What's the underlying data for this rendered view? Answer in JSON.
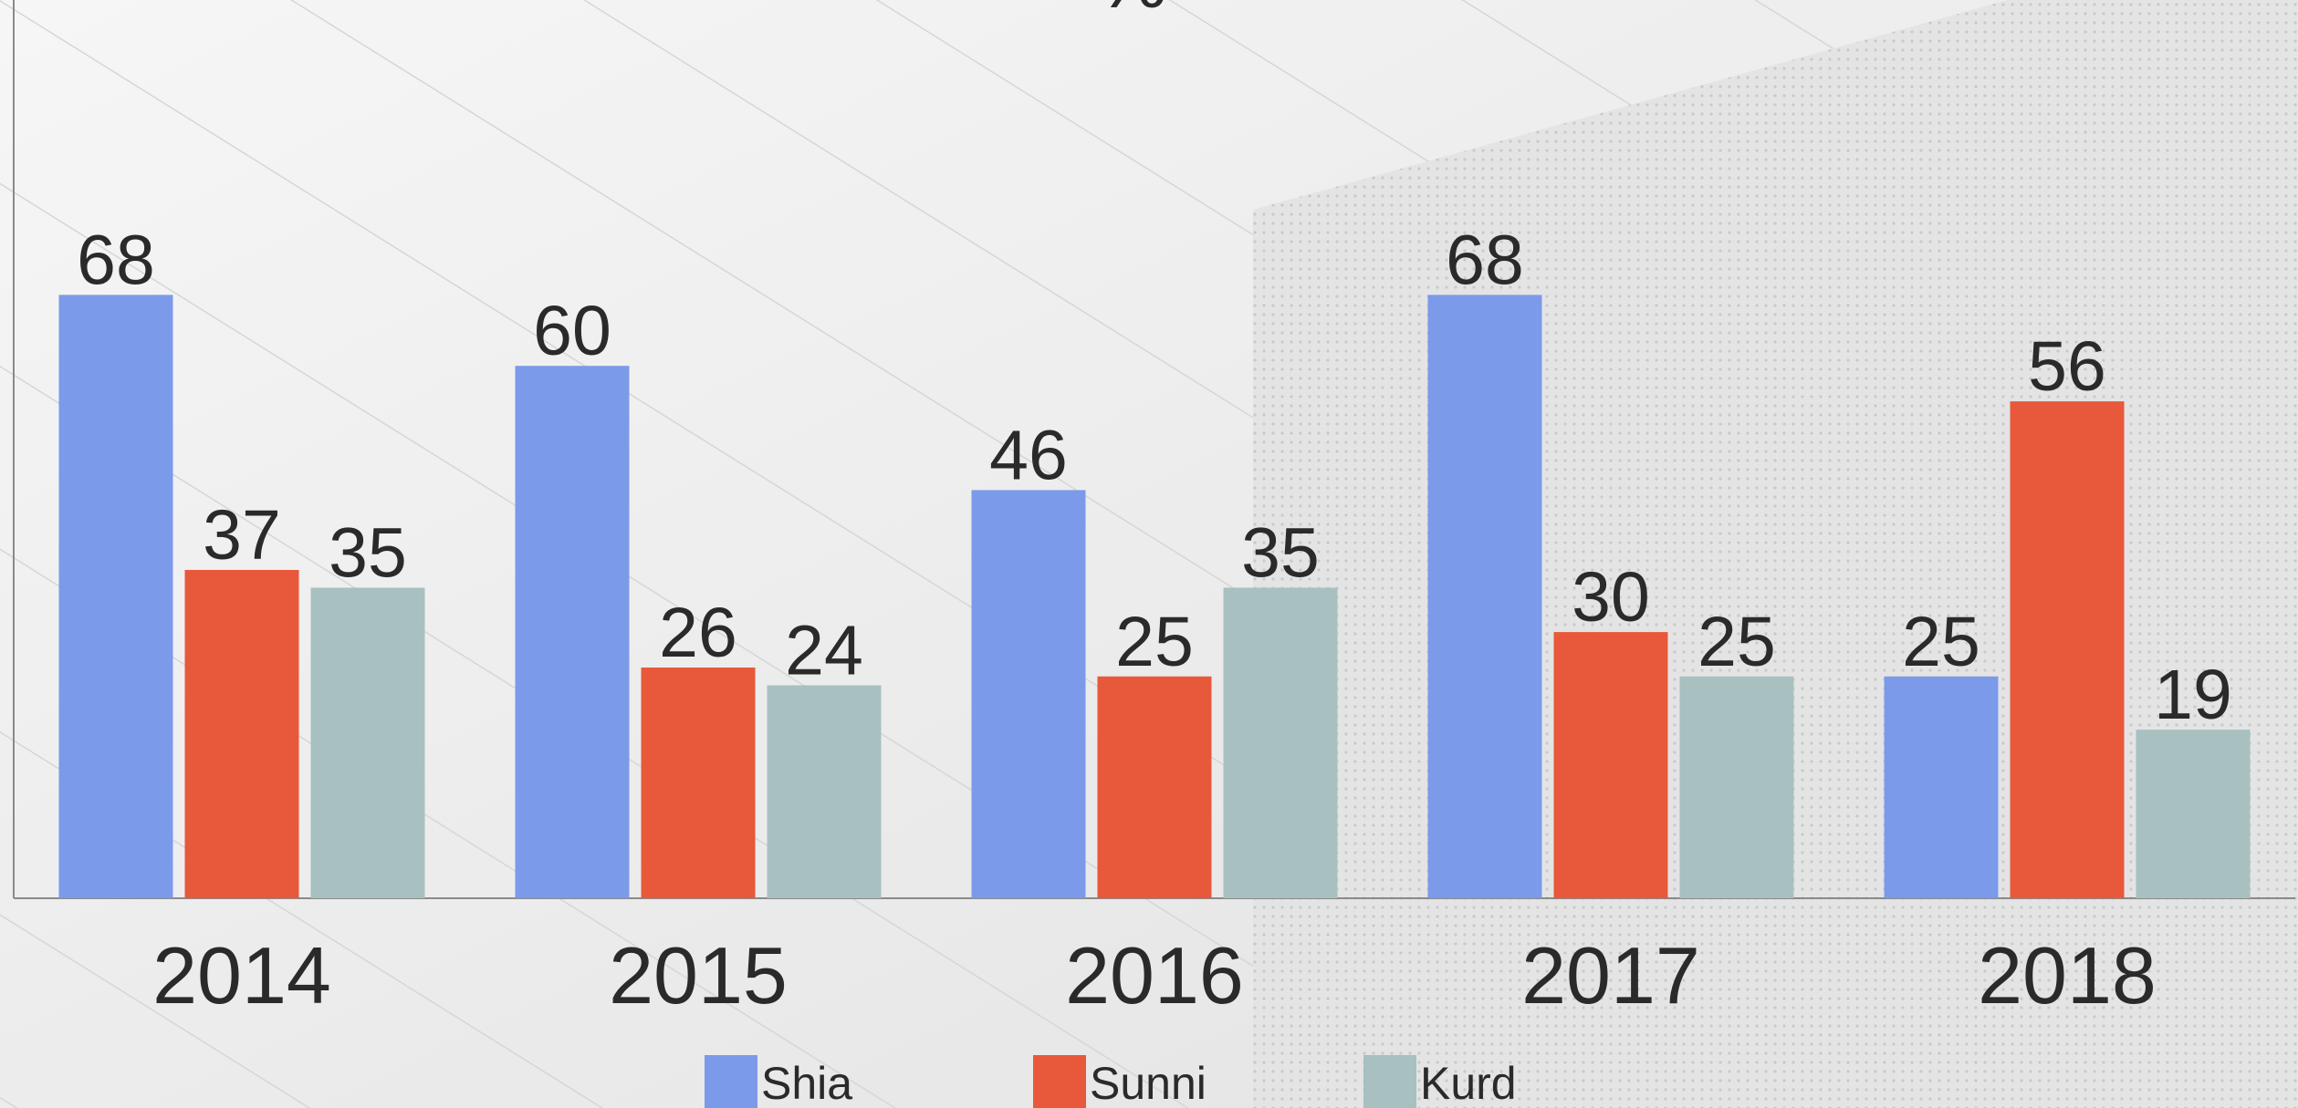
{
  "chart_data": {
    "type": "bar",
    "title": "%",
    "categories": [
      "2014",
      "2015",
      "2016",
      "2017",
      "2018"
    ],
    "series": [
      {
        "name": "Shia",
        "color": "#7b9aea",
        "values": [
          68,
          60,
          46,
          68,
          25
        ]
      },
      {
        "name": "Sunni",
        "color": "#e8583a",
        "values": [
          37,
          26,
          25,
          30,
          56
        ]
      },
      {
        "name": "Kurd",
        "color": "#a8c0c0",
        "values": [
          35,
          24,
          35,
          25,
          19
        ]
      }
    ],
    "ylim": [
      0,
      100
    ],
    "grid": false,
    "legend": "bottom"
  }
}
